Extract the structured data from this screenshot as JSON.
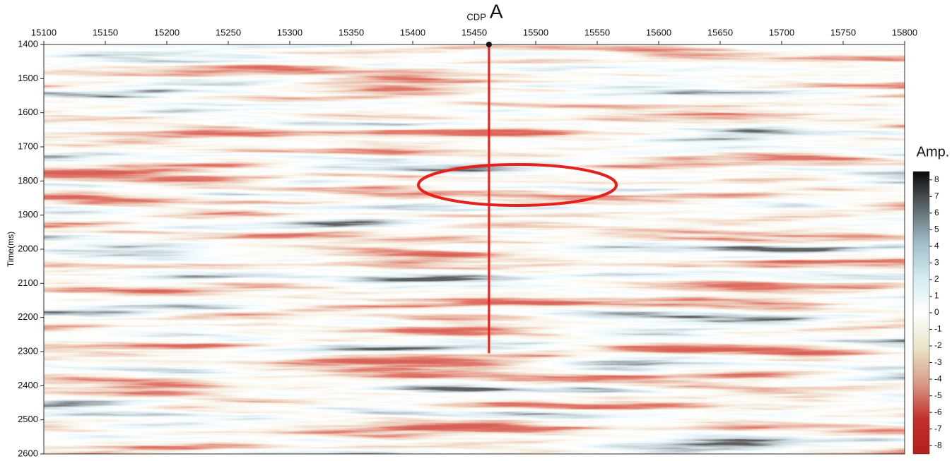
{
  "chart_data": {
    "type": "seismic",
    "xticks": [
      15100,
      15150,
      15200,
      15250,
      15300,
      15350,
      15400,
      15450,
      15500,
      15550,
      15600,
      15650,
      15700,
      15750,
      15800
    ],
    "xlim": [
      15100,
      15800
    ],
    "ylabel": "Time(ms)",
    "yticks": [
      1400,
      1500,
      1600,
      1700,
      1800,
      1900,
      2000,
      2100,
      2200,
      2300,
      2400,
      2500,
      2600
    ],
    "ylim": [
      1400,
      2600
    ],
    "well": {
      "cdp_label": "CDP",
      "label": "A",
      "x": 15462,
      "top": 1400,
      "bottom": 2305,
      "color": "#e8201c"
    },
    "colorbar": {
      "title": "Amp.",
      "lim": [
        -8.5,
        8.5
      ],
      "ticks": [
        8,
        7,
        6,
        5,
        4,
        3,
        2,
        1,
        0,
        -1,
        -2,
        -3,
        -4,
        -5,
        -6,
        -7,
        -8
      ],
      "colors": [
        "#b3201b",
        "#c0302a",
        "#d99a88",
        "#e8e4c8",
        "#ffffff",
        "#d3ecf2",
        "#9fbcc6",
        "#5b6669",
        "#0a0a0a"
      ]
    }
  }
}
